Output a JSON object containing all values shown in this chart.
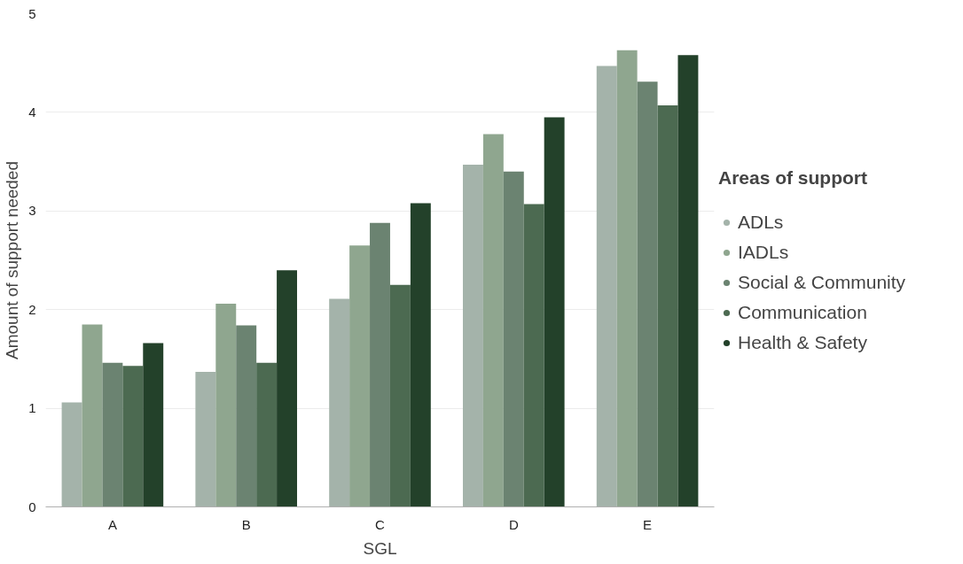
{
  "chart_data": {
    "type": "bar",
    "xlabel": "SGL",
    "ylabel": "Amount of support needed",
    "legend_title": "Areas of support",
    "categories": [
      "A",
      "B",
      "C",
      "D",
      "E"
    ],
    "series": [
      {
        "name": "ADLs",
        "color": "#a4b3aa",
        "values": [
          1.06,
          1.37,
          2.11,
          3.47,
          4.47
        ]
      },
      {
        "name": "IADLs",
        "color": "#8fa68f",
        "values": [
          1.85,
          2.06,
          2.65,
          3.78,
          4.63
        ]
      },
      {
        "name": "Social & Community",
        "color": "#6b8371",
        "values": [
          1.46,
          1.84,
          2.88,
          3.4,
          4.31
        ]
      },
      {
        "name": "Communication",
        "color": "#4c6a51",
        "values": [
          1.43,
          1.46,
          2.25,
          3.07,
          4.07
        ]
      },
      {
        "name": "Health & Safety",
        "color": "#23412a",
        "values": [
          1.66,
          2.4,
          3.08,
          3.95,
          4.58
        ]
      }
    ],
    "ylim": [
      0,
      5
    ],
    "yticks": [
      0,
      1,
      2,
      3,
      4,
      5
    ],
    "grid": "y",
    "legend": "right",
    "marker": "circle"
  }
}
